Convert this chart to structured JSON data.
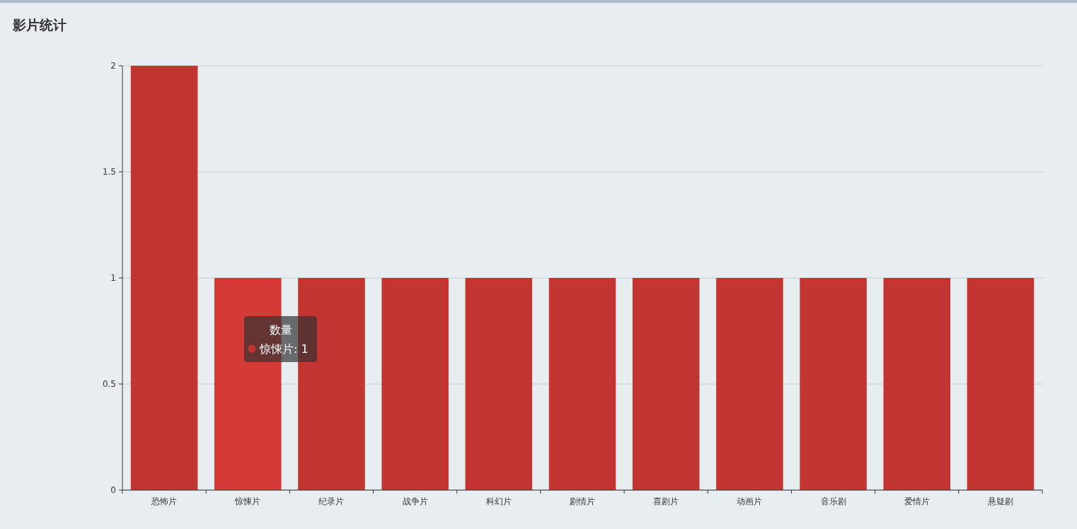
{
  "chart_data": {
    "type": "bar",
    "title": "影片统计",
    "categories": [
      "恐怖片",
      "惊悚片",
      "纪录片",
      "战争片",
      "科幻片",
      "剧情片",
      "喜剧片",
      "动画片",
      "音乐剧",
      "爱情片",
      "悬疑剧"
    ],
    "series": [
      {
        "name": "数量",
        "color": "#c23531",
        "colors": [
          "#c23531",
          "#d63a34",
          "#c23531",
          "#c23531",
          "#c23531",
          "#c23531",
          "#c23531",
          "#c23531",
          "#c23531",
          "#c23531",
          "#c23531"
        ],
        "values": [
          2,
          1,
          1,
          1,
          1,
          1,
          1,
          1,
          1,
          1,
          1
        ]
      }
    ],
    "ylim": [
      0,
      2
    ],
    "yticks": [
      0,
      0.5,
      1,
      1.5,
      2
    ],
    "grid": "y",
    "legend": false,
    "annotations": [
      "惊悚片: 1"
    ]
  }
}
